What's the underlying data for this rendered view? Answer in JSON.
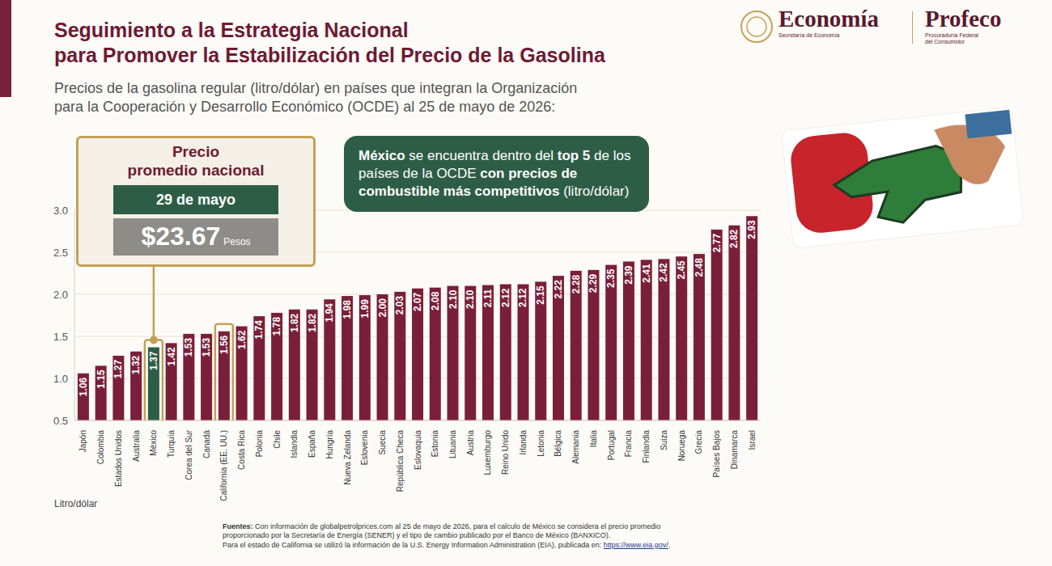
{
  "chart_data": {
    "type": "bar",
    "title": "Seguimiento a la Estrategia Nacional\npara Promover la Estabilización del Precio de la Gasolina",
    "subtitle": "Precios de la gasolina regular (litro/dólar) en países que integran la Organización\npara la Cooperación y Desarrollo Económico (OCDE) al 25 de mayo de 2026:",
    "logos": [
      {
        "name": "Economía",
        "caption": "Secretaría de Economía"
      },
      {
        "name": "Profeco",
        "caption": "Procuraduría Federal\ndel Consumidor"
      }
    ],
    "price_box": {
      "title": "Precio\npromedio nacional",
      "date": "29 de mayo",
      "price": "$23.67",
      "unit": "Pesos"
    },
    "callout": [
      {
        "text": "México",
        "bold": true
      },
      {
        "text": " se encuentra dentro del ",
        "bold": false
      },
      {
        "text": "top 5",
        "bold": true
      },
      {
        "text": " de los países de la OCDE ",
        "bold": false
      },
      {
        "text": "con precios de combustible más competitivos",
        "bold": true
      },
      {
        "text": " (litro/dólar)",
        "bold": false
      }
    ],
    "ylabel": "Litro/dólar",
    "sources": {
      "label": "Fuentes:",
      "text": "Con información de globalpetrolprices.com al 25 de mayo de 2026, para el calculo de México se considera el precio promedio proporcionado por la Secretaría de Energía (SENER) y el tipo de cambio publicado por el Banco de México (BANXICO).",
      "text2": "Para el estado de California se utilizó la información de la U.S. Energy Information Administration (EIA), publicada en:",
      "link": "https://www.eia.gov/",
      "end": "."
    },
    "categories": [
      "Japón",
      "Colombia",
      "Estados Unidos",
      "Australia",
      "México",
      "Turquía",
      "Corea del Sur",
      "Canadá",
      "California (EE. UU.)",
      "Costa Rica",
      "Polonia",
      "Chile",
      "Islandia",
      "España",
      "Hungría",
      "Nueva Zelanda",
      "Eslovenia",
      "Suecia",
      "República Checa",
      "Eslovaquia",
      "Estonia",
      "Lituania",
      "Austria",
      "Luxemburgo",
      "Reino Unido",
      "Irlanda",
      "Letonia",
      "Bélgica",
      "Alemania",
      "Italia",
      "Portugal",
      "Francia",
      "Finlandia",
      "Suiza",
      "Noruega",
      "Grecia",
      "Países Bajos",
      "Dinamarca",
      "Israel"
    ],
    "values": [
      1.06,
      1.15,
      1.27,
      1.32,
      1.37,
      1.42,
      1.53,
      1.53,
      1.56,
      1.62,
      1.74,
      1.78,
      1.82,
      1.82,
      1.94,
      1.98,
      1.99,
      2.0,
      2.03,
      2.07,
      2.08,
      2.1,
      2.1,
      2.11,
      2.12,
      2.12,
      2.15,
      2.22,
      2.28,
      2.29,
      2.35,
      2.39,
      2.41,
      2.42,
      2.45,
      2.48,
      2.77,
      2.82,
      2.93
    ],
    "value_labels": [
      "1.06",
      "1.15",
      "1.27",
      "1.32",
      "1.37",
      "1.42",
      "1.53",
      "1.53",
      "1.56",
      "1.62",
      "1.74",
      "1.78",
      "1.82",
      "1.82",
      "1.94",
      "1.98",
      "1.99",
      "2.00",
      "2.03",
      "2.07",
      "2.08",
      "2.10",
      "2.10",
      "2.11",
      "2.12",
      "2.12",
      "2.15",
      "2.22",
      "2.28",
      "2.29",
      "2.35",
      "2.39",
      "2.41",
      "2.42",
      "2.45",
      "2.48",
      "2.77",
      "2.82",
      "2.93"
    ],
    "colors": [
      "#7a1f3a",
      "#7a1f3a",
      "#7a1f3a",
      "#7a1f3a",
      "#2e5d47",
      "#7a1f3a",
      "#7a1f3a",
      "#7a1f3a",
      "#7a1f3a",
      "#7a1f3a",
      "#7a1f3a",
      "#7a1f3a",
      "#7a1f3a",
      "#7a1f3a",
      "#7a1f3a",
      "#7a1f3a",
      "#7a1f3a",
      "#7a1f3a",
      "#7a1f3a",
      "#7a1f3a",
      "#7a1f3a",
      "#7a1f3a",
      "#7a1f3a",
      "#7a1f3a",
      "#7a1f3a",
      "#7a1f3a",
      "#7a1f3a",
      "#7a1f3a",
      "#7a1f3a",
      "#7a1f3a",
      "#7a1f3a",
      "#7a1f3a",
      "#7a1f3a",
      "#7a1f3a",
      "#7a1f3a",
      "#7a1f3a",
      "#7a1f3a",
      "#7a1f3a",
      "#7a1f3a"
    ],
    "ylim": [
      0.5,
      3
    ],
    "yticks": [
      0.5,
      {
        "value": 1,
        "label": "1.0"
      },
      1.5,
      {
        "value": 2,
        "label": "2.0"
      },
      2.5,
      {
        "value": 3,
        "label": "3.0"
      }
    ],
    "grid": true,
    "data_labels": true
  }
}
